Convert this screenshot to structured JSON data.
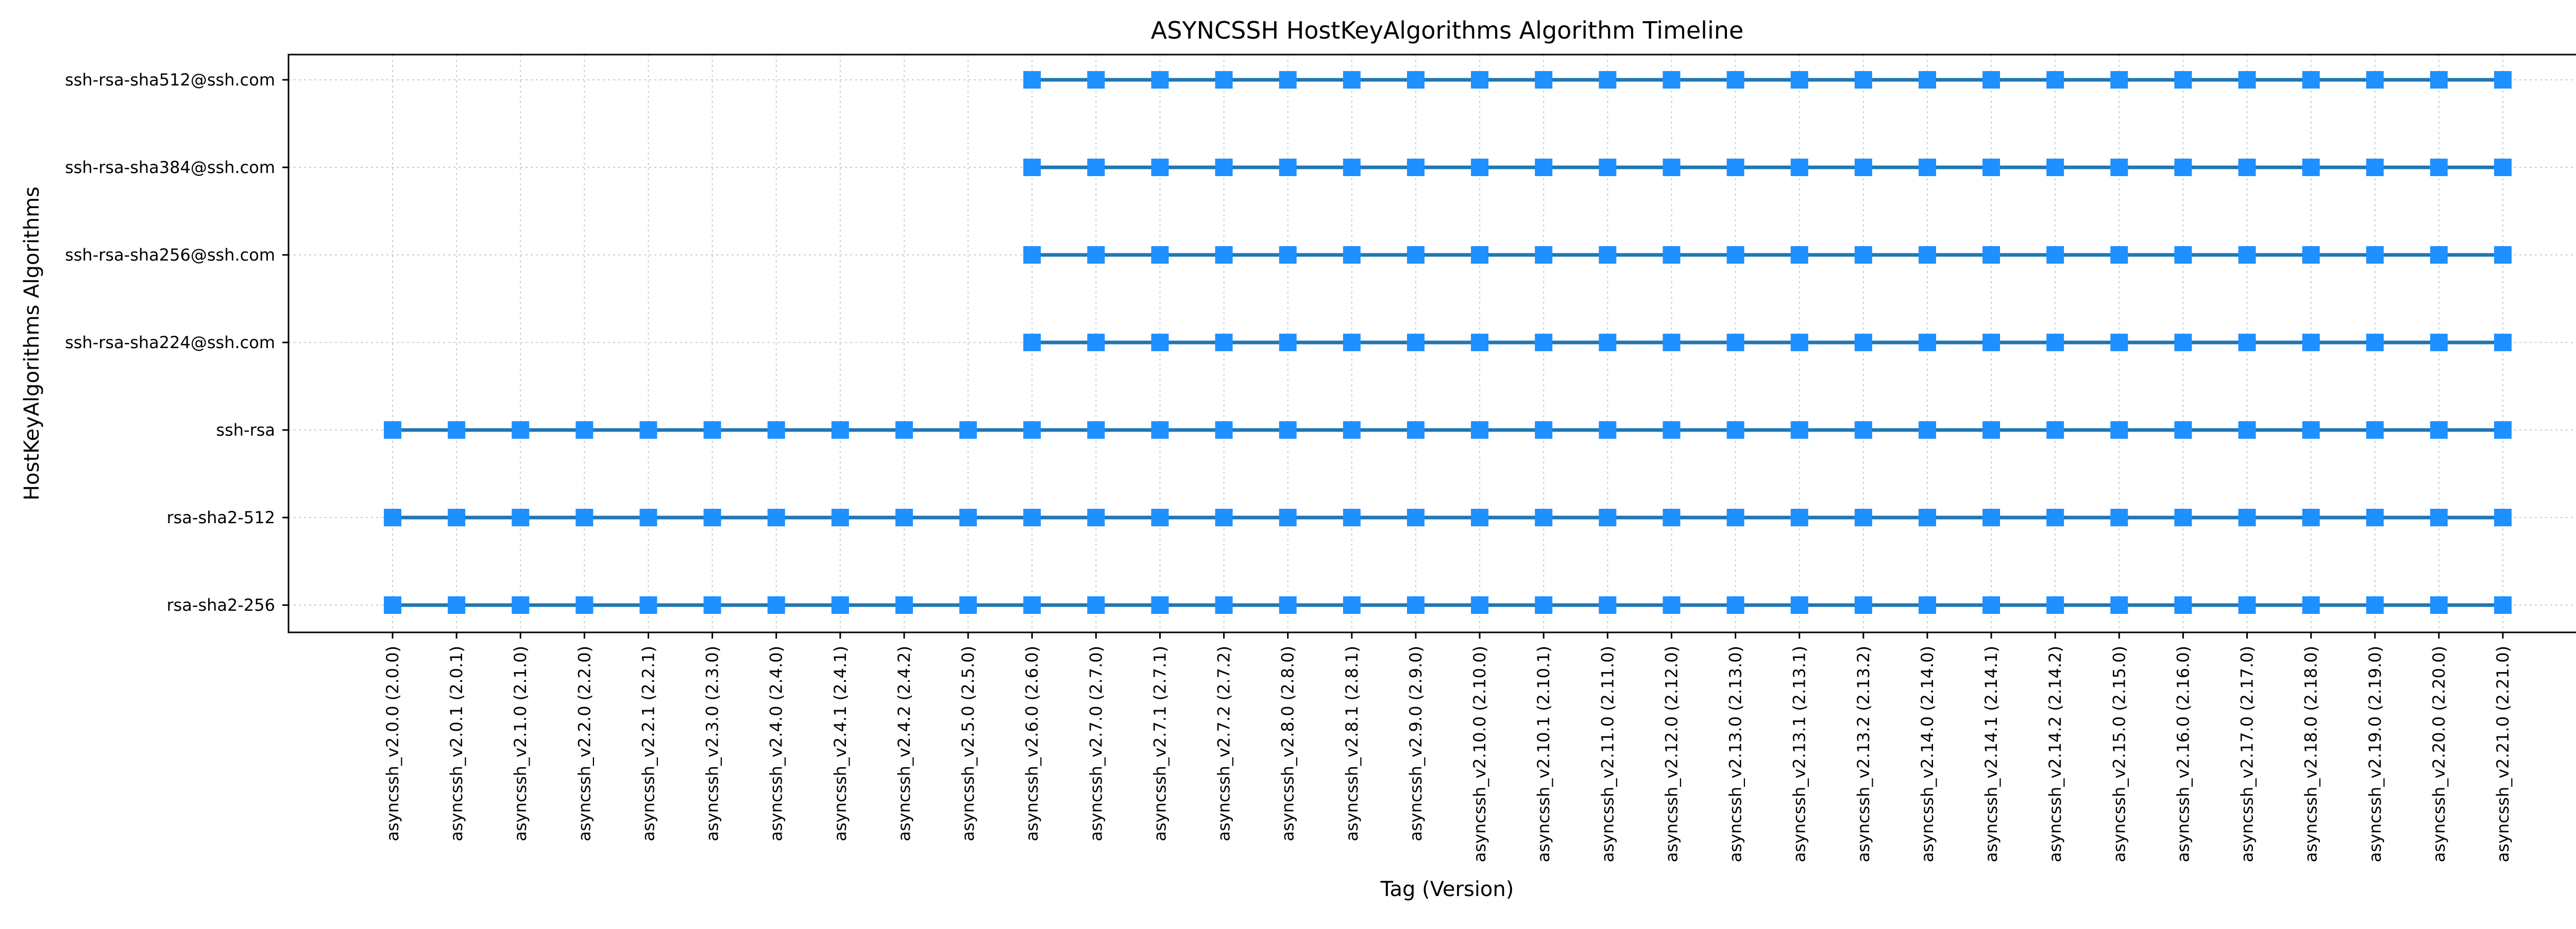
{
  "chart_data": {
    "type": "line",
    "title": "ASYNCSSH HostKeyAlgorithms Algorithm Timeline",
    "xlabel": "Tag (Version)",
    "ylabel": "HostKeyAlgorithms Algorithms",
    "grid": true,
    "legend": "none",
    "x": [
      "asyncssh_v2.0.0 (2.0.0)",
      "asyncssh_v2.0.1 (2.0.1)",
      "asyncssh_v2.1.0 (2.1.0)",
      "asyncssh_v2.2.0 (2.2.0)",
      "asyncssh_v2.2.1 (2.2.1)",
      "asyncssh_v2.3.0 (2.3.0)",
      "asyncssh_v2.4.0 (2.4.0)",
      "asyncssh_v2.4.1 (2.4.1)",
      "asyncssh_v2.4.2 (2.4.2)",
      "asyncssh_v2.5.0 (2.5.0)",
      "asyncssh_v2.6.0 (2.6.0)",
      "asyncssh_v2.7.0 (2.7.0)",
      "asyncssh_v2.7.1 (2.7.1)",
      "asyncssh_v2.7.2 (2.7.2)",
      "asyncssh_v2.8.0 (2.8.0)",
      "asyncssh_v2.8.1 (2.8.1)",
      "asyncssh_v2.9.0 (2.9.0)",
      "asyncssh_v2.10.0 (2.10.0)",
      "asyncssh_v2.10.1 (2.10.1)",
      "asyncssh_v2.11.0 (2.11.0)",
      "asyncssh_v2.12.0 (2.12.0)",
      "asyncssh_v2.13.0 (2.13.0)",
      "asyncssh_v2.13.1 (2.13.1)",
      "asyncssh_v2.13.2 (2.13.2)",
      "asyncssh_v2.14.0 (2.14.0)",
      "asyncssh_v2.14.1 (2.14.1)",
      "asyncssh_v2.14.2 (2.14.2)",
      "asyncssh_v2.15.0 (2.15.0)",
      "asyncssh_v2.16.0 (2.16.0)",
      "asyncssh_v2.17.0 (2.17.0)",
      "asyncssh_v2.18.0 (2.18.0)",
      "asyncssh_v2.19.0 (2.19.0)",
      "asyncssh_v2.20.0 (2.20.0)",
      "asyncssh_v2.21.0 (2.21.0)"
    ],
    "y_categories": [
      "rsa-sha2-256",
      "rsa-sha2-512",
      "ssh-rsa",
      "ssh-rsa-sha224@ssh.com",
      "ssh-rsa-sha256@ssh.com",
      "ssh-rsa-sha384@ssh.com",
      "ssh-rsa-sha512@ssh.com"
    ],
    "series": [
      {
        "algorithm": "rsa-sha2-256",
        "present_from": "asyncssh_v2.0.0 (2.0.0)",
        "present_to": "asyncssh_v2.21.0 (2.21.0)"
      },
      {
        "algorithm": "rsa-sha2-512",
        "present_from": "asyncssh_v2.0.0 (2.0.0)",
        "present_to": "asyncssh_v2.21.0 (2.21.0)"
      },
      {
        "algorithm": "ssh-rsa",
        "present_from": "asyncssh_v2.0.0 (2.0.0)",
        "present_to": "asyncssh_v2.21.0 (2.21.0)"
      },
      {
        "algorithm": "ssh-rsa-sha224@ssh.com",
        "present_from": "asyncssh_v2.6.0 (2.6.0)",
        "present_to": "asyncssh_v2.21.0 (2.21.0)"
      },
      {
        "algorithm": "ssh-rsa-sha256@ssh.com",
        "present_from": "asyncssh_v2.6.0 (2.6.0)",
        "present_to": "asyncssh_v2.21.0 (2.21.0)"
      },
      {
        "algorithm": "ssh-rsa-sha384@ssh.com",
        "present_from": "asyncssh_v2.6.0 (2.6.0)",
        "present_to": "asyncssh_v2.21.0 (2.21.0)"
      },
      {
        "algorithm": "ssh-rsa-sha512@ssh.com",
        "present_from": "asyncssh_v2.6.0 (2.6.0)",
        "present_to": "asyncssh_v2.21.0 (2.21.0)"
      }
    ],
    "colors": {
      "line": "#1f77b4",
      "marker": "#1e90ff",
      "grid": "#cccccc"
    },
    "marker": "square"
  }
}
